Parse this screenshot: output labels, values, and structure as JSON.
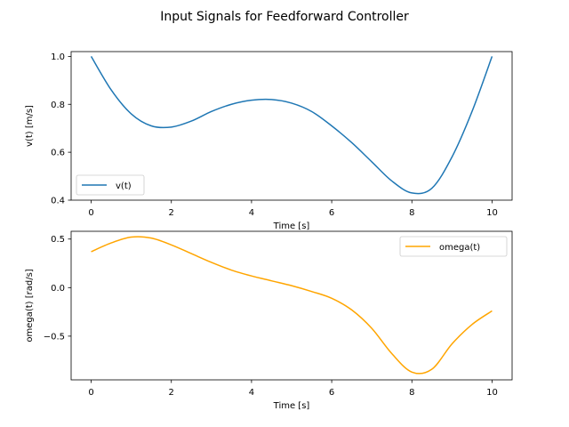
{
  "figure": {
    "title": "Input Signals for Feedforward Controller"
  },
  "chart_data": [
    {
      "type": "line",
      "xlabel": "Time [s]",
      "ylabel": "v(t) [m/s]",
      "xlim": [
        -0.5,
        10.5
      ],
      "ylim": [
        0.4,
        1.02
      ],
      "xticks": [
        0,
        2,
        4,
        6,
        8,
        10
      ],
      "yticks": [
        0.4,
        0.6,
        0.8,
        1.0
      ],
      "ytick_labels": [
        "0.4",
        "0.6",
        "0.8",
        "1.0"
      ],
      "grid": false,
      "legend": "lower left",
      "series": [
        {
          "name": "v(t)",
          "color": "#1f77b4",
          "x": [
            0,
            0.5,
            1.0,
            1.5,
            2.0,
            2.5,
            3.0,
            3.5,
            4.0,
            4.5,
            5.0,
            5.5,
            6.0,
            6.5,
            7.0,
            7.5,
            8.0,
            8.5,
            9.0,
            9.5,
            10.0
          ],
          "y": [
            1.0,
            0.86,
            0.76,
            0.71,
            0.705,
            0.73,
            0.77,
            0.8,
            0.817,
            0.82,
            0.805,
            0.77,
            0.71,
            0.64,
            0.56,
            0.48,
            0.43,
            0.45,
            0.58,
            0.77,
            1.0
          ]
        }
      ]
    },
    {
      "type": "line",
      "xlabel": "Time [s]",
      "ylabel": "omega(t) [rad/s]",
      "xlim": [
        -0.5,
        10.5
      ],
      "ylim": [
        -0.95,
        0.58
      ],
      "xticks": [
        0,
        2,
        4,
        6,
        8,
        10
      ],
      "yticks": [
        -0.5,
        0.0,
        0.5
      ],
      "ytick_labels": [
        "−0.5",
        "0.0",
        "0.5"
      ],
      "grid": false,
      "legend": "upper right",
      "series": [
        {
          "name": "omega(t)",
          "color": "#ffa500",
          "x": [
            0,
            0.5,
            1.0,
            1.5,
            2.0,
            2.5,
            3.0,
            3.5,
            4.0,
            4.5,
            5.0,
            5.5,
            6.0,
            6.5,
            7.0,
            7.5,
            8.0,
            8.5,
            9.0,
            9.5,
            10.0
          ],
          "y": [
            0.37,
            0.46,
            0.52,
            0.51,
            0.44,
            0.35,
            0.26,
            0.18,
            0.12,
            0.07,
            0.02,
            -0.04,
            -0.11,
            -0.23,
            -0.42,
            -0.68,
            -0.87,
            -0.84,
            -0.58,
            -0.38,
            -0.24
          ]
        }
      ]
    }
  ]
}
